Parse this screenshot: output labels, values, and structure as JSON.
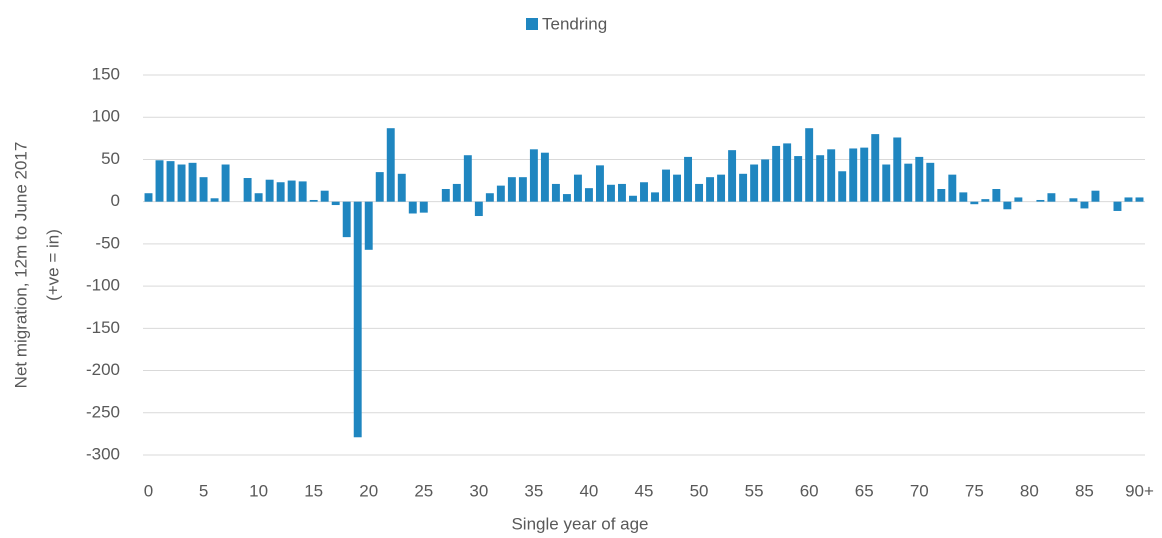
{
  "chart_data": {
    "type": "bar",
    "legend": "top",
    "grid": true,
    "series": [
      {
        "name": "Tendring",
        "color": "#1f86c0",
        "values": [
          10,
          49,
          48,
          44,
          46,
          29,
          4,
          44,
          0,
          28,
          10,
          26,
          23,
          25,
          24,
          2,
          13,
          -4,
          -42,
          -279,
          -57,
          35,
          87,
          33,
          -14,
          -13,
          0,
          15,
          21,
          55,
          -17,
          10,
          19,
          29,
          29,
          62,
          58,
          21,
          9,
          32,
          16,
          43,
          20,
          21,
          7,
          23,
          11,
          38,
          32,
          53,
          21,
          29,
          32,
          61,
          33,
          44,
          50,
          66,
          69,
          54,
          87,
          55,
          62,
          36,
          63,
          64,
          80,
          44,
          76,
          45,
          53,
          46,
          15,
          32,
          11,
          -3,
          3,
          15,
          -9,
          5,
          0,
          2,
          10,
          0,
          4,
          -8,
          13,
          0,
          -11,
          5,
          5
        ]
      }
    ],
    "categories": [
      "0",
      null,
      null,
      null,
      null,
      "5",
      null,
      null,
      null,
      null,
      "10",
      null,
      null,
      null,
      null,
      "15",
      null,
      null,
      null,
      null,
      "20",
      null,
      null,
      null,
      null,
      "25",
      null,
      null,
      null,
      null,
      "30",
      null,
      null,
      null,
      null,
      "35",
      null,
      null,
      null,
      null,
      "40",
      null,
      null,
      null,
      null,
      "45",
      null,
      null,
      null,
      null,
      "50",
      null,
      null,
      null,
      null,
      "55",
      null,
      null,
      null,
      null,
      "60",
      null,
      null,
      null,
      null,
      "65",
      null,
      null,
      null,
      null,
      "70",
      null,
      null,
      null,
      null,
      "75",
      null,
      null,
      null,
      null,
      "80",
      null,
      null,
      null,
      null,
      "85",
      null,
      null,
      null,
      null,
      "90+"
    ],
    "ylabel": [
      "Net migration, 12m to June 2017",
      "(+ve = in)"
    ],
    "xlabel": "Single year of age",
    "ylim": [
      -300,
      150
    ],
    "yticks": [
      -300,
      -250,
      -200,
      -150,
      -100,
      -50,
      0,
      50,
      100,
      150
    ]
  }
}
